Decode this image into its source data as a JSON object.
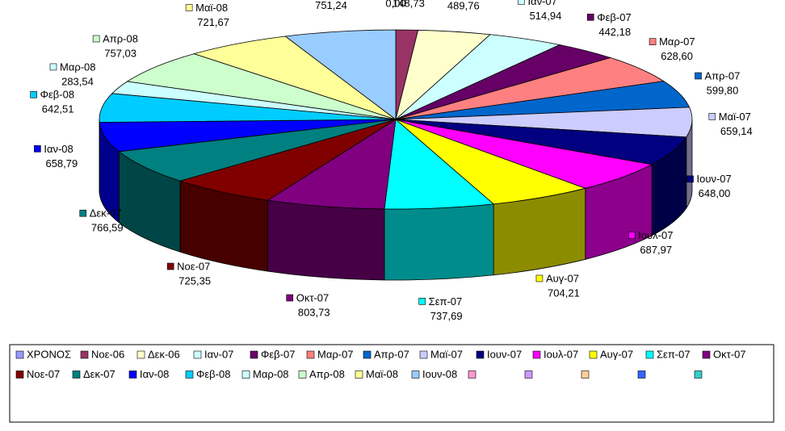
{
  "chart_data": {
    "type": "pie3d",
    "categories": [
      "ΧΡΟΝΟΣ",
      "Νοε-06",
      "Δεκ-06",
      "Ιαν-07",
      "Φεβ-07",
      "Μαρ-07",
      "Απρ-07",
      "Μαϊ-07",
      "Ιουν-07",
      "Ιουλ-07",
      "Αυγ-07",
      "Σεπ-07",
      "Οκτ-07",
      "Νοε-07",
      "Δεκ-07",
      "Ιαν-08",
      "Φεβ-08",
      "Μαρ-08",
      "Απρ-08",
      "Μαϊ-08",
      "Ιουν-08",
      null,
      null,
      null,
      null,
      null
    ],
    "values": [
      0,
      148.73,
      489.76,
      514.94,
      442.18,
      628.6,
      599.8,
      659.14,
      648.0,
      687.97,
      704.21,
      737.69,
      803.73,
      725.35,
      766.59,
      658.79,
      642.51,
      283.54,
      757.03,
      721.67,
      751.24,
      null,
      null,
      null,
      null,
      null
    ],
    "value_labels": [
      "0,00",
      "148,73",
      "489,76",
      "514,94",
      "442,18",
      "628,60",
      "599,80",
      "659,14",
      "648,00",
      "687,97",
      "704,21",
      "737,69",
      "803,73",
      "725,35",
      "766,59",
      "658,79",
      "642,51",
      "283,54",
      "757,03",
      "721,67",
      "751,24",
      null,
      null,
      null,
      null,
      null
    ],
    "colors": [
      "#9999FF",
      "#993366",
      "#FFFFCC",
      "#CCFFFF",
      "#660066",
      "#FF8080",
      "#0066CC",
      "#CCCCFF",
      "#000080",
      "#FF00FF",
      "#FFFF00",
      "#00FFFF",
      "#800080",
      "#800000",
      "#008080",
      "#0000FF",
      "#00CCFF",
      "#CCFFFF",
      "#CCFFCC",
      "#FFFF99",
      "#99CCFF",
      "#FF99CC",
      "#CC99FF",
      "#FFCC99",
      "#3366FF",
      "#33CCCC"
    ],
    "legend": "bottom"
  }
}
